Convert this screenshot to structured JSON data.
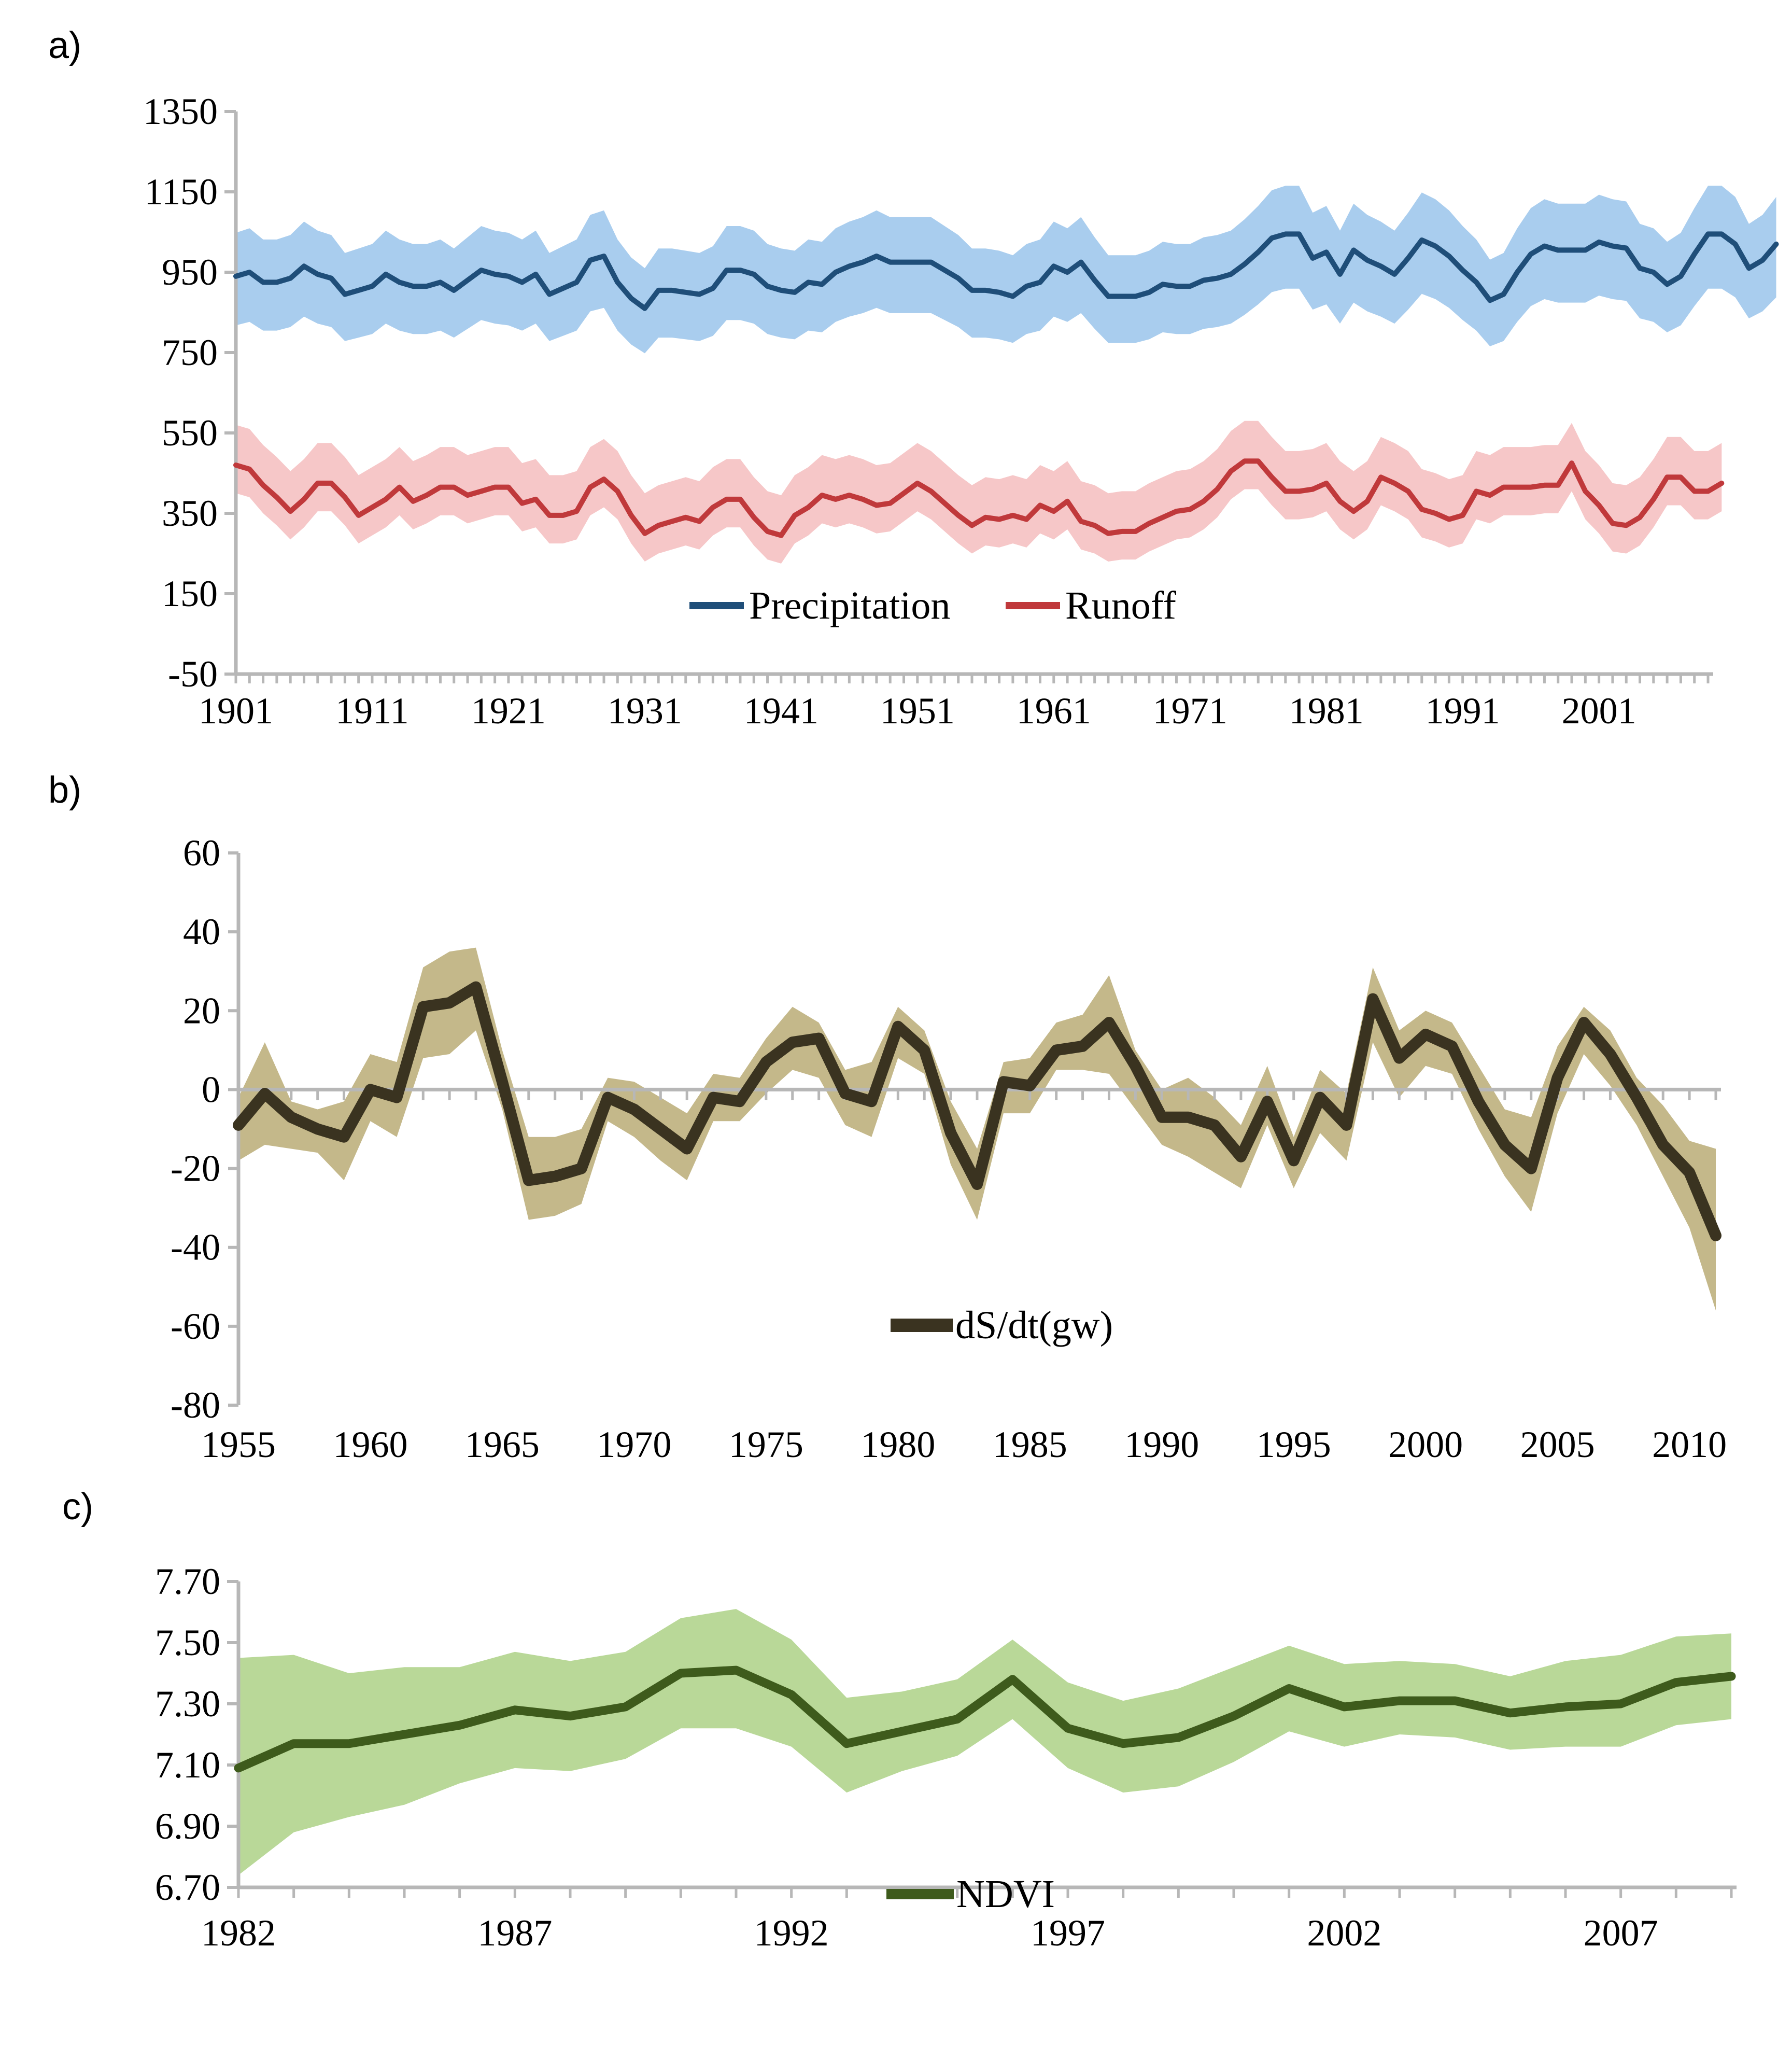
{
  "chart_data": [
    {
      "panel": "a)",
      "type": "line",
      "ylim": [
        -50,
        1350
      ],
      "yticks": [
        "1350",
        "1150",
        "950",
        "750",
        "550",
        "350",
        "150",
        "-50"
      ],
      "xlim": [
        1901,
        2009
      ],
      "xticks": [
        "1901",
        "1911",
        "1921",
        "1931",
        "1941",
        "1951",
        "1961",
        "1971",
        "1981",
        "1991",
        "2001"
      ],
      "series": [
        {
          "name": "Precipitation",
          "color": "#1f4e79",
          "band_color": "#a9cdee",
          "x_start": 1901,
          "values": [
            940,
            950,
            925,
            925,
            935,
            965,
            945,
            935,
            895,
            905,
            915,
            945,
            925,
            915,
            915,
            925,
            905,
            930,
            955,
            945,
            940,
            925,
            945,
            895,
            910,
            925,
            980,
            990,
            925,
            885,
            860,
            905,
            905,
            900,
            895,
            910,
            955,
            955,
            945,
            915,
            905,
            900,
            925,
            920,
            950,
            965,
            975,
            990,
            975,
            975,
            975,
            975,
            955,
            935,
            905,
            905,
            900,
            890,
            915,
            925,
            965,
            950,
            975,
            930,
            890,
            890,
            890,
            900,
            920,
            915,
            915,
            930,
            935,
            945,
            970,
            1000,
            1035,
            1045,
            1045,
            985,
            1000,
            945,
            1005,
            980,
            965,
            945,
            985,
            1030,
            1015,
            990,
            955,
            925,
            880,
            895,
            950,
            995,
            1015,
            1005,
            1005,
            1005,
            1025,
            1015,
            1010,
            960,
            950,
            920,
            940,
            995,
            1045,
            1045,
            1020,
            960,
            980,
            1020
          ]
        },
        {
          "name": "Runoff",
          "color": "#c0393b",
          "band_color": "#f6c7c8",
          "x_start": 1901,
          "values": [
            470,
            460,
            420,
            390,
            355,
            385,
            425,
            425,
            390,
            345,
            365,
            385,
            415,
            380,
            395,
            415,
            415,
            395,
            405,
            415,
            415,
            375,
            385,
            345,
            345,
            355,
            415,
            435,
            405,
            345,
            300,
            320,
            330,
            340,
            330,
            365,
            385,
            385,
            340,
            305,
            295,
            345,
            365,
            395,
            385,
            395,
            385,
            370,
            375,
            400,
            425,
            405,
            375,
            345,
            320,
            340,
            335,
            345,
            335,
            370,
            355,
            380,
            330,
            320,
            300,
            305,
            305,
            325,
            340,
            355,
            360,
            380,
            410,
            455,
            480,
            480,
            440,
            405,
            405,
            410,
            425,
            380,
            355,
            380,
            440,
            425,
            405,
            360,
            350,
            335,
            345,
            405,
            395,
            415,
            415,
            415,
            420,
            420,
            475,
            405,
            370,
            325,
            320,
            340,
            385,
            440,
            440,
            405,
            405,
            425
          ]
        }
      ]
    },
    {
      "panel": "b)",
      "type": "line",
      "ylim": [
        -80,
        60
      ],
      "yticks": [
        "60",
        "40",
        "20",
        "0",
        "-20",
        "-40",
        "-60",
        "-80"
      ],
      "xlim": [
        1955,
        2011
      ],
      "xticks": [
        "1955",
        "1960",
        "1965",
        "1970",
        "1975",
        "1980",
        "1985",
        "1990",
        "1995",
        "2000",
        "2005",
        "2010"
      ],
      "series": [
        {
          "name": "dS/dt(gw)",
          "color": "#3a3320",
          "band_color": "#c4b88a",
          "x": [
            1955,
            1956,
            1957,
            1958,
            1959,
            1960,
            1961,
            1962,
            1963,
            1964,
            1965,
            1966,
            1967,
            1968,
            1969,
            1970,
            1971,
            1972,
            1973,
            1974,
            1975,
            1976,
            1977,
            1978,
            1979,
            1980,
            1981,
            1982,
            1983,
            1984,
            1985,
            1986,
            1987,
            1988,
            1989,
            1990,
            1991,
            1992,
            1993,
            1994,
            1995,
            1996,
            1997,
            1998,
            1999,
            2000,
            2001,
            2002,
            2003,
            2004,
            2005,
            2006,
            2007,
            2008,
            2009,
            2010,
            2011
          ],
          "values": [
            -9,
            -1,
            -7,
            -10,
            -12,
            0,
            -2,
            21,
            22,
            26,
            2,
            -23,
            -22,
            -20,
            -2,
            -5,
            -10,
            -15,
            -2,
            -3,
            7,
            12,
            13,
            -1,
            -3,
            16,
            10,
            -11,
            -24,
            2,
            1,
            10,
            11,
            17,
            6,
            -7,
            -7,
            -9,
            -17,
            -3,
            -18,
            -2,
            -9,
            23,
            8,
            14,
            11,
            -3,
            -14,
            -20,
            3,
            17,
            9,
            -2,
            -14,
            -21,
            -37
          ],
          "band_upper": [
            -2,
            12,
            -3,
            -5,
            -3,
            9,
            7,
            31,
            35,
            36,
            10,
            -12,
            -12,
            -10,
            3,
            2,
            -2,
            -6,
            4,
            3,
            13,
            21,
            17,
            5,
            7,
            21,
            15,
            -3,
            -15,
            7,
            8,
            17,
            19,
            29,
            10,
            0,
            3,
            -2,
            -9,
            6,
            -12,
            5,
            -1,
            31,
            15,
            20,
            17,
            6,
            -5,
            -7,
            11,
            21,
            15,
            3,
            -4,
            -13,
            -15
          ],
          "band_lower": [
            -18,
            -14,
            -15,
            -16,
            -23,
            -8,
            -12,
            8,
            9,
            15,
            -5,
            -33,
            -32,
            -29,
            -8,
            -12,
            -18,
            -23,
            -8,
            -8,
            -1,
            5,
            3,
            -9,
            -12,
            8,
            4,
            -19,
            -33,
            -6,
            -6,
            5,
            5,
            4,
            -5,
            -14,
            -17,
            -21,
            -25,
            -9,
            -25,
            -11,
            -18,
            12,
            -2,
            6,
            4,
            -10,
            -22,
            -31,
            -6,
            9,
            1,
            -9,
            -22,
            -35,
            -56
          ]
        }
      ]
    },
    {
      "panel": "c)",
      "type": "line",
      "ylim": [
        6.7,
        7.7
      ],
      "yticks": [
        "7.70",
        "7.50",
        "7.30",
        "7.10",
        "6.90",
        "6.70"
      ],
      "xlim": [
        1982,
        2009
      ],
      "xticks": [
        "1982",
        "1987",
        "1992",
        "1997",
        "2002",
        "2007"
      ],
      "series": [
        {
          "name": "NDVI",
          "color": "#3e5b1c",
          "band_color": "#b9d898",
          "x": [
            1982,
            1983,
            1984,
            1985,
            1986,
            1987,
            1988,
            1989,
            1990,
            1991,
            1992,
            1993,
            1994,
            1995,
            1996,
            1997,
            1998,
            1999,
            2000,
            2001,
            2002,
            2003,
            2004,
            2005,
            2006,
            2007,
            2008,
            2009
          ],
          "values": [
            7.09,
            7.17,
            7.17,
            7.2,
            7.23,
            7.28,
            7.26,
            7.29,
            7.4,
            7.41,
            7.33,
            7.17,
            7.21,
            7.25,
            7.38,
            7.22,
            7.17,
            7.19,
            7.26,
            7.35,
            7.29,
            7.31,
            7.31,
            7.27,
            7.29,
            7.3,
            7.37,
            7.39
          ],
          "band_upper": [
            7.45,
            7.46,
            7.4,
            7.42,
            7.42,
            7.47,
            7.44,
            7.47,
            7.58,
            7.61,
            7.51,
            7.32,
            7.34,
            7.38,
            7.51,
            7.37,
            7.31,
            7.35,
            7.42,
            7.49,
            7.43,
            7.44,
            7.43,
            7.39,
            7.44,
            7.46,
            7.52,
            7.53
          ],
          "band_lower": [
            6.74,
            6.88,
            6.93,
            6.97,
            7.04,
            7.09,
            7.08,
            7.12,
            7.22,
            7.22,
            7.16,
            7.01,
            7.08,
            7.13,
            7.25,
            7.09,
            7.01,
            7.03,
            7.11,
            7.21,
            7.16,
            7.2,
            7.19,
            7.15,
            7.16,
            7.16,
            7.23,
            7.25
          ]
        }
      ]
    }
  ]
}
